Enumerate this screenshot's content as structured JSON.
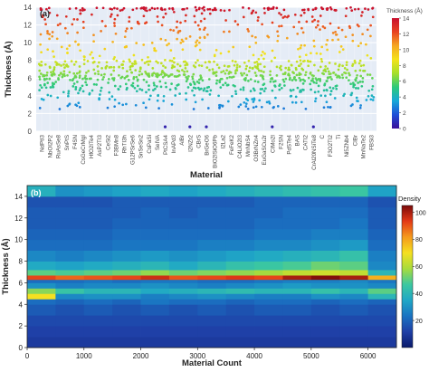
{
  "chart_data": [
    {
      "panel_label": "(a)",
      "type": "scatter",
      "title": "",
      "xlabel": "Material",
      "ylabel": "Thickness (Å)",
      "ylim": [
        0,
        14
      ],
      "yticks": [
        0,
        2,
        4,
        6,
        8,
        10,
        12,
        14
      ],
      "grid": true,
      "colorbar": {
        "title": "Thickness (Å)",
        "range": [
          0,
          14
        ],
        "ticks": [
          0,
          2,
          4,
          6,
          8,
          10,
          12,
          14
        ],
        "colormap": [
          "#3b0f99",
          "#1f4fd8",
          "#17a8d8",
          "#2dc97a",
          "#a6df2a",
          "#f4e21a",
          "#f5a623",
          "#e8421f",
          "#c8102e"
        ]
      },
      "categories": [
        "NdPtI3",
        "NbOI2P2",
        "RuAsSe8",
        "SnPtS",
        "F4SN",
        "CsGeCrMgI",
        "HfO2ITe4",
        "AsP2TI3",
        "CeSi2",
        "F3BMn8",
        "RhTI3h",
        "G12PSrSe6",
        "SnSeSn2",
        "CsPaSi",
        "SeIVA",
        "PtCSA4",
        "InAPd3",
        "AlBr",
        "I2NZr2",
        "CBrS",
        "BrGeO6",
        "BiO2ISiO6Pb",
        "I2La2",
        "FeFeK2",
        "C4LiO2I3",
        "MnNbS4",
        "O3BrNZn4",
        "EuGaSCu2r",
        "CIMo2I",
        "F2SN",
        "PdSTe4",
        "BAS",
        "CATI2",
        "CrAl20NSiTe8",
        "C",
        "F3O2TI2",
        "Ti",
        "Ni5ZNb4",
        "CIBr",
        "MnNaTe2",
        "FBSi3"
      ],
      "series_description": "≈4000 scatter points per category band; thickness values spread between ~2.5 and 14 Å with densest band near 6 Å and a saturated band at 14 Å",
      "density_profile": [
        {
          "y_range": [
            13.6,
            14.0
          ],
          "relative_density": 1.0
        },
        {
          "y_range": [
            8.0,
            13.5
          ],
          "relative_density": 0.18
        },
        {
          "y_range": [
            6.5,
            8.0
          ],
          "relative_density": 0.65
        },
        {
          "y_range": [
            5.8,
            6.5
          ],
          "relative_density": 1.0
        },
        {
          "y_range": [
            4.5,
            5.8
          ],
          "relative_density": 0.55
        },
        {
          "y_range": [
            2.5,
            4.5
          ],
          "relative_density": 0.25
        }
      ],
      "outliers": [
        {
          "category": "PtCSA4",
          "y": 0.5
        },
        {
          "category": "I2NZr2",
          "y": 0.5
        },
        {
          "category": "BrGeO6",
          "y": 0.5
        },
        {
          "category": "CIMo2I",
          "y": 0.5
        },
        {
          "category": "CrAl20NSiTe8",
          "y": 0.5
        }
      ]
    },
    {
      "panel_label": "(b)",
      "type": "heatmap",
      "title": "",
      "xlabel": "Material Count",
      "ylabel": "Thickness (Å)",
      "xlim": [
        0,
        6500
      ],
      "ylim": [
        0,
        15
      ],
      "xticks": [
        0,
        1000,
        2000,
        3000,
        4000,
        5000,
        6000
      ],
      "yticks": [
        0,
        2,
        4,
        6,
        8,
        10,
        12,
        14
      ],
      "colorbar": {
        "title": "Density",
        "range": [
          0,
          105
        ],
        "ticks": [
          20,
          40,
          60,
          80,
          100
        ],
        "colormap": [
          "#0a1a6b",
          "#1f3fa6",
          "#1a73c2",
          "#20a7c6",
          "#3cc8a0",
          "#a8dc3c",
          "#f5e020",
          "#f59a1c",
          "#e43a17",
          "#7a0a0a"
        ]
      },
      "x_bins": [
        0,
        500,
        1000,
        1500,
        2000,
        2500,
        3000,
        3500,
        4000,
        4500,
        5000,
        5500,
        6000,
        6500
      ],
      "y_bins": [
        0,
        1,
        2,
        3,
        4,
        4.5,
        5,
        5.5,
        6,
        6.3,
        6.7,
        7.2,
        8,
        9,
        10,
        11,
        12,
        13,
        14,
        15
      ],
      "z": [
        [
          10,
          10,
          10,
          10,
          10,
          10,
          10,
          10,
          10,
          10,
          10,
          10,
          10
        ],
        [
          12,
          12,
          12,
          12,
          12,
          12,
          12,
          12,
          12,
          12,
          12,
          12,
          12
        ],
        [
          14,
          14,
          14,
          14,
          14,
          14,
          14,
          14,
          14,
          14,
          14,
          14,
          14
        ],
        [
          18,
          16,
          18,
          16,
          18,
          16,
          18,
          16,
          18,
          18,
          16,
          18,
          16
        ],
        [
          22,
          20,
          22,
          20,
          24,
          22,
          22,
          20,
          22,
          22,
          20,
          22,
          20
        ],
        [
          70,
          28,
          30,
          30,
          26,
          28,
          30,
          28,
          26,
          26,
          30,
          28,
          40
        ],
        [
          55,
          45,
          40,
          40,
          36,
          38,
          40,
          42,
          40,
          40,
          44,
          40,
          50
        ],
        [
          30,
          26,
          28,
          28,
          30,
          28,
          26,
          28,
          30,
          32,
          30,
          30,
          28
        ],
        [
          22,
          22,
          24,
          22,
          24,
          24,
          22,
          22,
          24,
          26,
          26,
          28,
          24
        ],
        [
          92,
          88,
          90,
          92,
          96,
          90,
          92,
          94,
          92,
          100,
          104,
          100,
          78
        ],
        [
          50,
          48,
          50,
          52,
          56,
          52,
          54,
          56,
          58,
          62,
          64,
          62,
          40
        ],
        [
          36,
          34,
          36,
          38,
          40,
          36,
          40,
          44,
          46,
          48,
          52,
          50,
          28
        ],
        [
          28,
          26,
          28,
          30,
          32,
          30,
          32,
          34,
          36,
          38,
          40,
          44,
          26
        ],
        [
          22,
          22,
          22,
          24,
          24,
          24,
          26,
          26,
          28,
          28,
          30,
          32,
          22
        ],
        [
          20,
          20,
          20,
          22,
          22,
          22,
          22,
          22,
          24,
          24,
          26,
          26,
          20
        ],
        [
          18,
          18,
          18,
          20,
          20,
          20,
          20,
          20,
          22,
          22,
          22,
          24,
          18
        ],
        [
          18,
          18,
          18,
          18,
          20,
          18,
          20,
          20,
          20,
          22,
          22,
          22,
          18
        ],
        [
          16,
          16,
          16,
          18,
          18,
          18,
          18,
          18,
          20,
          20,
          20,
          20,
          16
        ],
        [
          38,
          30,
          32,
          34,
          36,
          34,
          36,
          38,
          40,
          42,
          44,
          46,
          34
        ]
      ]
    }
  ]
}
